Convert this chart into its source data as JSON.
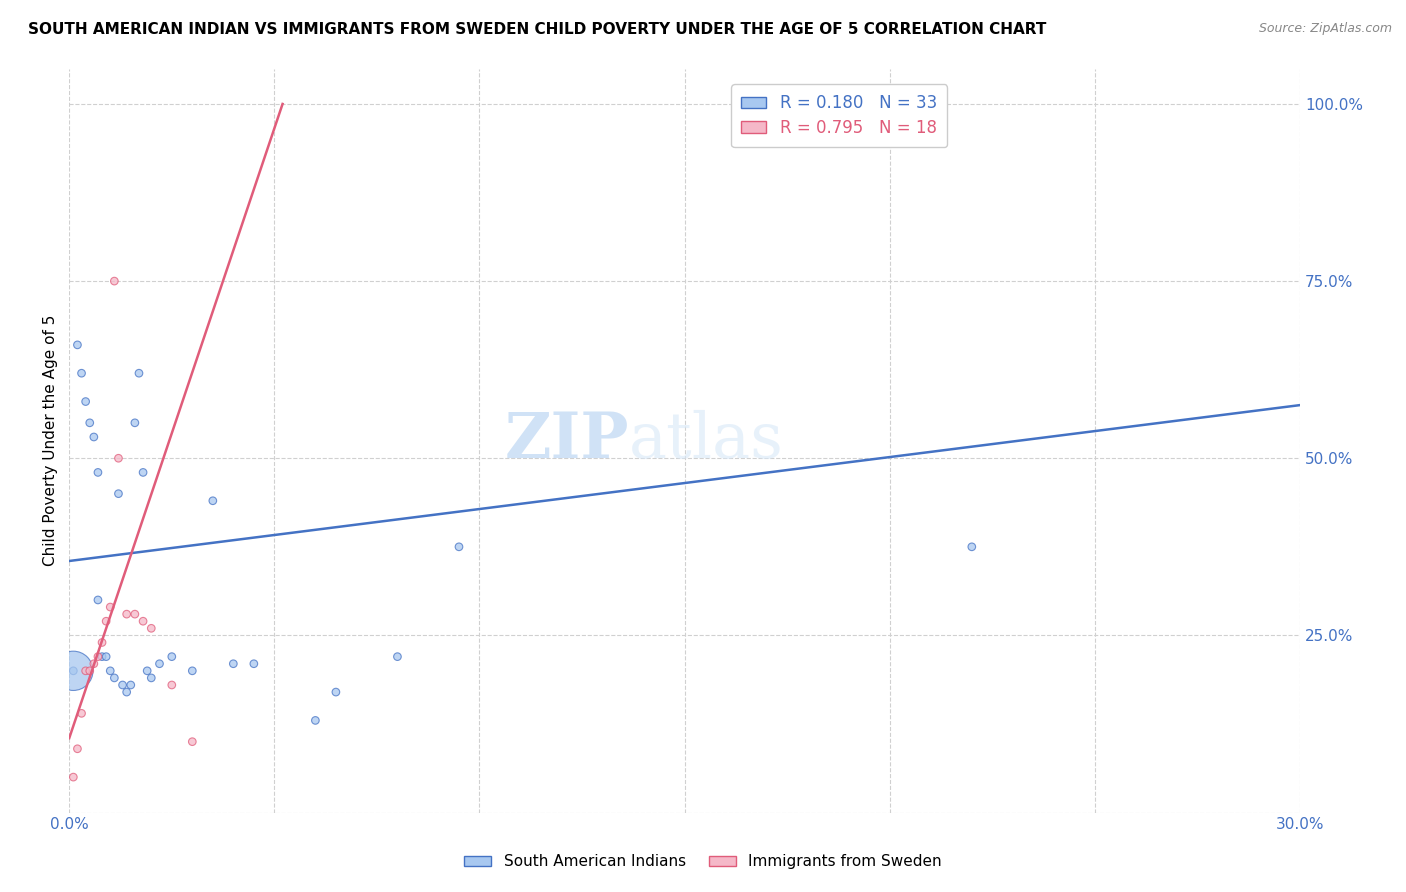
{
  "title": "SOUTH AMERICAN INDIAN VS IMMIGRANTS FROM SWEDEN CHILD POVERTY UNDER THE AGE OF 5 CORRELATION CHART",
  "source": "Source: ZipAtlas.com",
  "ylabel": "Child Poverty Under the Age of 5",
  "xlim": [
    0.0,
    0.3
  ],
  "ylim": [
    0.0,
    1.05
  ],
  "xticks": [
    0.0,
    0.05,
    0.1,
    0.15,
    0.2,
    0.25,
    0.3
  ],
  "xticklabels": [
    "0.0%",
    "",
    "",
    "",
    "",
    "",
    "30.0%"
  ],
  "yticks_right": [
    0.0,
    0.25,
    0.5,
    0.75,
    1.0
  ],
  "ytick_right_labels": [
    "",
    "25.0%",
    "50.0%",
    "75.0%",
    "100.0%"
  ],
  "R_blue": 0.18,
  "N_blue": 33,
  "R_pink": 0.795,
  "N_pink": 18,
  "blue_color": "#a8c8f0",
  "pink_color": "#f5b8c8",
  "line_blue": "#4472c4",
  "line_pink": "#e05c7a",
  "watermark_zip": "ZIP",
  "watermark_atlas": "atlas",
  "legend_label_blue": "South American Indians",
  "legend_label_pink": "Immigrants from Sweden",
  "blue_scatter_x": [
    0.001,
    0.002,
    0.003,
    0.004,
    0.005,
    0.006,
    0.007,
    0.007,
    0.008,
    0.009,
    0.01,
    0.011,
    0.012,
    0.013,
    0.014,
    0.015,
    0.016,
    0.017,
    0.018,
    0.019,
    0.02,
    0.022,
    0.025,
    0.03,
    0.035,
    0.04,
    0.045,
    0.06,
    0.065,
    0.08,
    0.095,
    0.22,
    0.001
  ],
  "blue_scatter_y": [
    0.2,
    0.66,
    0.62,
    0.58,
    0.55,
    0.53,
    0.48,
    0.3,
    0.22,
    0.22,
    0.2,
    0.19,
    0.45,
    0.18,
    0.17,
    0.18,
    0.55,
    0.62,
    0.48,
    0.2,
    0.19,
    0.21,
    0.22,
    0.2,
    0.44,
    0.21,
    0.21,
    0.13,
    0.17,
    0.22,
    0.375,
    0.375,
    0.2
  ],
  "blue_scatter_s": [
    30,
    30,
    30,
    30,
    30,
    30,
    30,
    30,
    30,
    30,
    30,
    30,
    30,
    30,
    30,
    30,
    30,
    30,
    30,
    30,
    30,
    30,
    30,
    30,
    30,
    30,
    30,
    30,
    30,
    30,
    30,
    30,
    800
  ],
  "pink_scatter_x": [
    0.001,
    0.002,
    0.003,
    0.004,
    0.005,
    0.006,
    0.007,
    0.008,
    0.009,
    0.01,
    0.011,
    0.012,
    0.014,
    0.016,
    0.018,
    0.02,
    0.025,
    0.03
  ],
  "pink_scatter_y": [
    0.05,
    0.09,
    0.14,
    0.2,
    0.2,
    0.21,
    0.22,
    0.24,
    0.27,
    0.29,
    0.75,
    0.5,
    0.28,
    0.28,
    0.27,
    0.26,
    0.18,
    0.1
  ],
  "pink_scatter_s": [
    30,
    30,
    30,
    30,
    30,
    30,
    30,
    30,
    30,
    30,
    30,
    30,
    30,
    30,
    30,
    30,
    30,
    30
  ],
  "blue_line_x": [
    0.0,
    0.3
  ],
  "blue_line_y": [
    0.355,
    0.575
  ],
  "pink_line_x": [
    0.0,
    0.052
  ],
  "pink_line_y": [
    0.105,
    1.0
  ]
}
